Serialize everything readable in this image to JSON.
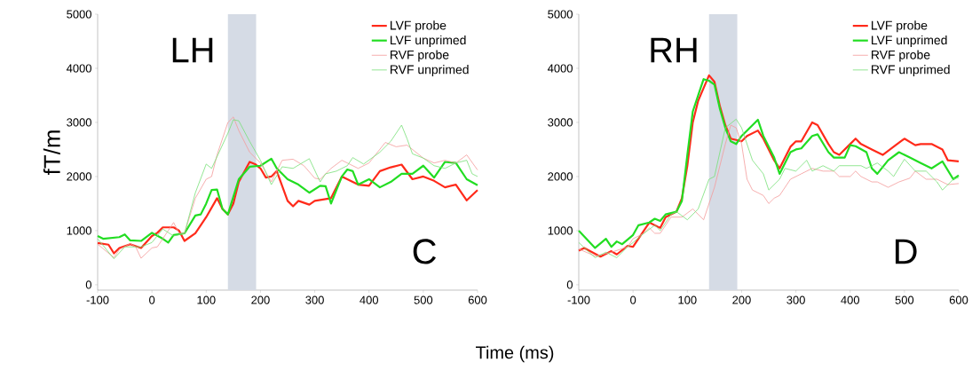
{
  "chart_data": [
    {
      "type": "line",
      "ylabel": "fT/m",
      "xlabel": "Time (ms)",
      "annotations": [
        "LH",
        "C"
      ],
      "xlim": [
        -100,
        600
      ],
      "ylim": [
        -100,
        5000
      ],
      "xticks": [
        -100,
        0,
        100,
        200,
        300,
        400,
        500,
        600
      ],
      "yticks": [
        0,
        1000,
        2000,
        3000,
        4000,
        5000
      ],
      "legend": "top right",
      "grid": false,
      "bands": [
        {
          "axis": "x",
          "from": 140,
          "to": 192,
          "color": "#d5dbe5"
        }
      ],
      "series": [
        {
          "name": "LVF probe",
          "color": "#ff2a1a",
          "x": [
            -100,
            -80,
            -70,
            -60,
            -40,
            -20,
            0,
            10,
            20,
            40,
            50,
            60,
            80,
            100,
            120,
            130,
            140,
            150,
            160,
            180,
            190,
            200,
            210,
            220,
            230,
            250,
            260,
            270,
            290,
            300,
            330,
            350,
            380,
            400,
            420,
            440,
            460,
            480,
            500,
            520,
            540,
            560,
            580,
            600
          ],
          "values": [
            770,
            740,
            580,
            680,
            750,
            680,
            900,
            960,
            1060,
            1060,
            1000,
            810,
            950,
            1250,
            1600,
            1400,
            1300,
            1500,
            1900,
            2270,
            2230,
            2150,
            1980,
            2000,
            2100,
            1550,
            1450,
            1550,
            1480,
            1550,
            1600,
            2000,
            1850,
            1830,
            2100,
            2170,
            2220,
            1950,
            2000,
            1920,
            1800,
            1850,
            1560,
            1750
          ]
        },
        {
          "name": "LVF unprimed",
          "color": "#22dd22",
          "x": [
            -100,
            -90,
            -60,
            -50,
            -40,
            -20,
            0,
            20,
            30,
            40,
            60,
            80,
            90,
            100,
            110,
            120,
            130,
            140,
            160,
            180,
            200,
            220,
            230,
            250,
            270,
            290,
            310,
            320,
            330,
            350,
            360,
            370,
            380,
            400,
            420,
            440,
            460,
            480,
            500,
            520,
            540,
            560,
            580,
            600
          ],
          "values": [
            900,
            850,
            880,
            930,
            820,
            810,
            960,
            850,
            780,
            920,
            950,
            1280,
            1300,
            1500,
            1750,
            1760,
            1400,
            1300,
            1950,
            2180,
            2200,
            2330,
            2150,
            1950,
            1850,
            1700,
            1830,
            1820,
            1500,
            2000,
            2130,
            2100,
            1850,
            1950,
            1800,
            1900,
            2050,
            2050,
            2200,
            1980,
            2270,
            2250,
            1950,
            1840
          ]
        },
        {
          "name": "RVF probe",
          "color": "#f49a9a",
          "x": [
            -100,
            -70,
            -60,
            -40,
            -30,
            -20,
            0,
            10,
            20,
            40,
            50,
            60,
            80,
            100,
            110,
            120,
            140,
            150,
            160,
            180,
            200,
            220,
            240,
            260,
            280,
            300,
            310,
            330,
            350,
            380,
            400,
            430,
            450,
            470,
            500,
            520,
            540,
            560,
            580,
            600
          ],
          "values": [
            750,
            500,
            650,
            760,
            700,
            490,
            680,
            700,
            850,
            1150,
            950,
            950,
            1600,
            1950,
            2000,
            2400,
            3000,
            3100,
            2850,
            2450,
            2250,
            1900,
            2300,
            2320,
            2200,
            1970,
            1950,
            2150,
            2300,
            2150,
            2250,
            2630,
            2550,
            2580,
            2340,
            2250,
            2300,
            2250,
            2400,
            2120
          ]
        },
        {
          "name": "RVF unprimed",
          "color": "#77e077",
          "x": [
            -100,
            -70,
            -50,
            -20,
            0,
            20,
            40,
            60,
            80,
            100,
            110,
            140,
            150,
            160,
            180,
            200,
            220,
            240,
            260,
            290,
            310,
            320,
            340,
            360,
            370,
            390,
            420,
            440,
            460,
            470,
            480,
            500,
            520,
            540,
            560,
            580,
            590,
            600
          ],
          "values": [
            850,
            480,
            700,
            700,
            780,
            1030,
            900,
            950,
            1700,
            2230,
            2150,
            2800,
            3050,
            3030,
            2650,
            2300,
            1850,
            2180,
            2150,
            2330,
            1900,
            2050,
            2100,
            2200,
            2350,
            2230,
            2450,
            2650,
            2950,
            2700,
            2420,
            2340,
            2200,
            2150,
            2250,
            2300,
            2050,
            2000
          ]
        }
      ]
    },
    {
      "type": "line",
      "annotations": [
        "RH",
        "D"
      ],
      "xlim": [
        -100,
        600
      ],
      "ylim": [
        -100,
        5000
      ],
      "xticks": [
        -100,
        0,
        100,
        200,
        300,
        400,
        500,
        600
      ],
      "yticks": [
        0,
        1000,
        2000,
        3000,
        4000,
        5000
      ],
      "legend": "top right",
      "grid": false,
      "bands": [
        {
          "axis": "x",
          "from": 140,
          "to": 192,
          "color": "#d5dbe5"
        }
      ],
      "series": [
        {
          "name": "LVF probe",
          "color": "#ff2a1a",
          "x": [
            -100,
            -90,
            -60,
            -40,
            -30,
            -10,
            0,
            20,
            30,
            50,
            60,
            80,
            90,
            100,
            110,
            120,
            140,
            150,
            160,
            170,
            180,
            200,
            210,
            230,
            240,
            260,
            270,
            290,
            300,
            310,
            330,
            340,
            360,
            370,
            380,
            400,
            410,
            420,
            440,
            460,
            480,
            500,
            520,
            530,
            550,
            570,
            580,
            600
          ],
          "values": [
            630,
            680,
            520,
            620,
            560,
            720,
            700,
            1000,
            1150,
            1050,
            1250,
            1350,
            1600,
            2200,
            3000,
            3400,
            3870,
            3750,
            3300,
            2950,
            2700,
            2650,
            2750,
            2850,
            2700,
            2300,
            2150,
            2550,
            2650,
            2650,
            3000,
            2950,
            2600,
            2450,
            2400,
            2600,
            2700,
            2600,
            2500,
            2400,
            2550,
            2700,
            2580,
            2600,
            2600,
            2500,
            2300,
            2280
          ]
        },
        {
          "name": "LVF unprimed",
          "color": "#22dd22",
          "x": [
            -100,
            -70,
            -50,
            -40,
            -30,
            -20,
            0,
            10,
            30,
            40,
            50,
            60,
            80,
            90,
            100,
            110,
            120,
            130,
            140,
            150,
            160,
            170,
            180,
            190,
            200,
            230,
            240,
            260,
            270,
            290,
            300,
            310,
            330,
            340,
            360,
            370,
            390,
            400,
            410,
            430,
            440,
            450,
            470,
            490,
            500,
            510,
            530,
            550,
            570,
            590,
            600
          ],
          "values": [
            1000,
            680,
            850,
            700,
            800,
            750,
            920,
            1100,
            1150,
            1220,
            1180,
            1300,
            1350,
            1550,
            2400,
            3200,
            3500,
            3800,
            3770,
            3700,
            3250,
            2900,
            2650,
            2600,
            2750,
            3050,
            2750,
            2350,
            2050,
            2450,
            2500,
            2520,
            2750,
            2780,
            2450,
            2350,
            2350,
            2580,
            2560,
            2450,
            2150,
            2050,
            2300,
            2450,
            2400,
            2350,
            2250,
            2150,
            2280,
            1950,
            2020
          ]
        },
        {
          "name": "RVF probe",
          "color": "#f49a9a",
          "x": [
            -100,
            -70,
            -40,
            -10,
            0,
            20,
            30,
            40,
            50,
            70,
            90,
            110,
            130,
            150,
            170,
            180,
            190,
            200,
            210,
            220,
            240,
            250,
            260,
            270,
            290,
            310,
            330,
            350,
            370,
            380,
            400,
            410,
            420,
            440,
            450,
            470,
            490,
            510,
            520,
            540,
            560,
            580,
            600
          ],
          "values": [
            660,
            530,
            600,
            700,
            850,
            950,
            1050,
            950,
            950,
            1250,
            1250,
            1400,
            1200,
            1800,
            2600,
            2950,
            2900,
            2600,
            1950,
            1750,
            1650,
            1500,
            1600,
            1650,
            1950,
            2050,
            2150,
            2100,
            2100,
            2000,
            2000,
            2100,
            2000,
            1900,
            1900,
            1800,
            1900,
            1970,
            2100,
            1950,
            1950,
            1850,
            1870
          ]
        },
        {
          "name": "RVF unprimed",
          "color": "#77e077",
          "x": [
            -100,
            -70,
            -50,
            -30,
            -10,
            0,
            20,
            40,
            50,
            70,
            80,
            100,
            120,
            140,
            150,
            170,
            190,
            200,
            220,
            240,
            250,
            270,
            280,
            300,
            320,
            330,
            350,
            370,
            380,
            420,
            430,
            450,
            470,
            480,
            500,
            520,
            540,
            560,
            570,
            590,
            600
          ],
          "values": [
            780,
            500,
            600,
            500,
            700,
            780,
            950,
            1100,
            1000,
            1300,
            1350,
            1200,
            1400,
            1950,
            2000,
            2900,
            3060,
            2900,
            2300,
            2050,
            1750,
            1950,
            2150,
            2100,
            2300,
            2100,
            2200,
            2100,
            2200,
            2200,
            2150,
            2250,
            2100,
            2000,
            2320,
            2100,
            2100,
            1900,
            1750,
            1950,
            1980
          ]
        }
      ]
    }
  ]
}
